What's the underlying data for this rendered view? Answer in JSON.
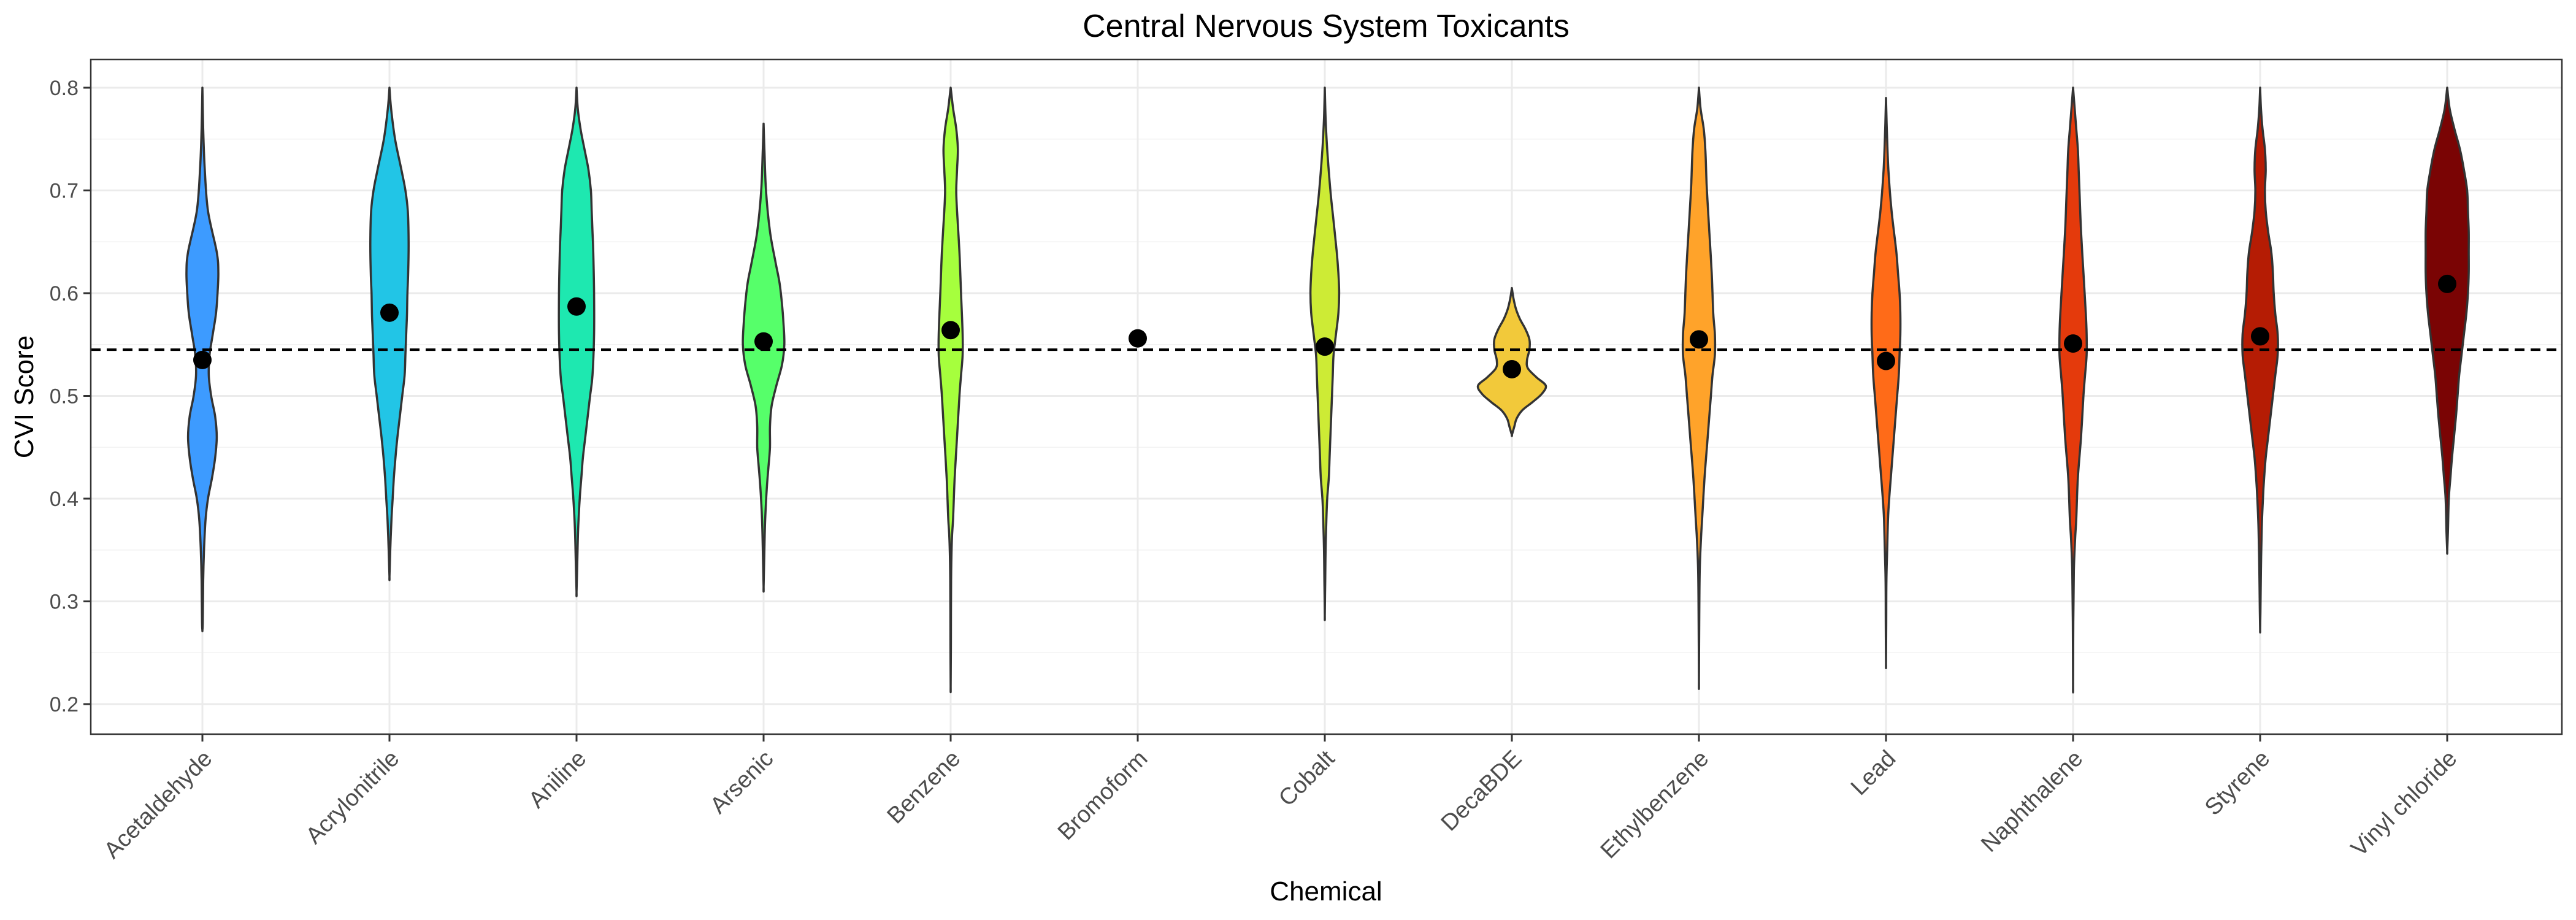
{
  "chart_data": {
    "type": "violin",
    "title": "Central Nervous System Toxicants",
    "xlabel": "Chemical",
    "ylabel": "CVI Score",
    "ylim": [
      0.17,
      0.82
    ],
    "yticks": [
      0.2,
      0.3,
      0.4,
      0.5,
      0.6,
      0.7,
      0.8
    ],
    "ytick_labels": [
      "0.2",
      "0.3",
      "0.4",
      "0.5",
      "0.6",
      "0.7",
      "0.8"
    ],
    "grid": true,
    "legend": "none",
    "reference_line": {
      "y": 0.545,
      "style": "dashed",
      "color": "#000000"
    },
    "categories": [
      "Acetaldehyde",
      "Acrylonitrile",
      "Aniline",
      "Arsenic",
      "Benzene",
      "Bromoform",
      "Cobalt",
      "DecaBDE",
      "Ethylbenzene",
      "Lead",
      "Naphthalene",
      "Styrene",
      "Vinyl chloride"
    ],
    "series": [
      {
        "name": "Acetaldehyde",
        "color": "#3d9bff",
        "mean": 0.535,
        "density": [
          [
            0.8,
            0.0
          ],
          [
            0.76,
            0.02
          ],
          [
            0.72,
            0.06
          ],
          [
            0.68,
            0.14
          ],
          [
            0.64,
            0.36
          ],
          [
            0.62,
            0.4
          ],
          [
            0.6,
            0.38
          ],
          [
            0.58,
            0.34
          ],
          [
            0.56,
            0.26
          ],
          [
            0.54,
            0.18
          ],
          [
            0.52,
            0.16
          ],
          [
            0.5,
            0.22
          ],
          [
            0.48,
            0.32
          ],
          [
            0.46,
            0.36
          ],
          [
            0.44,
            0.32
          ],
          [
            0.42,
            0.24
          ],
          [
            0.4,
            0.14
          ],
          [
            0.38,
            0.08
          ],
          [
            0.35,
            0.04
          ],
          [
            0.32,
            0.02
          ],
          [
            0.28,
            0.01
          ],
          [
            0.272,
            0.0
          ]
        ]
      },
      {
        "name": "Acrylonitrile",
        "color": "#22c5e6",
        "mean": 0.581,
        "density": [
          [
            0.8,
            0.0
          ],
          [
            0.78,
            0.04
          ],
          [
            0.75,
            0.14
          ],
          [
            0.72,
            0.3
          ],
          [
            0.7,
            0.4
          ],
          [
            0.68,
            0.46
          ],
          [
            0.65,
            0.48
          ],
          [
            0.62,
            0.47
          ],
          [
            0.6,
            0.45
          ],
          [
            0.58,
            0.44
          ],
          [
            0.56,
            0.42
          ],
          [
            0.54,
            0.4
          ],
          [
            0.52,
            0.38
          ],
          [
            0.5,
            0.32
          ],
          [
            0.48,
            0.26
          ],
          [
            0.46,
            0.2
          ],
          [
            0.44,
            0.15
          ],
          [
            0.42,
            0.11
          ],
          [
            0.4,
            0.08
          ],
          [
            0.38,
            0.05
          ],
          [
            0.35,
            0.02
          ],
          [
            0.324,
            0.0
          ]
        ]
      },
      {
        "name": "Aniline",
        "color": "#1ee8b0",
        "mean": 0.587,
        "density": [
          [
            0.8,
            0.0
          ],
          [
            0.78,
            0.03
          ],
          [
            0.76,
            0.1
          ],
          [
            0.74,
            0.2
          ],
          [
            0.72,
            0.3
          ],
          [
            0.7,
            0.36
          ],
          [
            0.68,
            0.38
          ],
          [
            0.66,
            0.4
          ],
          [
            0.64,
            0.42
          ],
          [
            0.6,
            0.44
          ],
          [
            0.56,
            0.44
          ],
          [
            0.52,
            0.4
          ],
          [
            0.5,
            0.34
          ],
          [
            0.48,
            0.28
          ],
          [
            0.46,
            0.22
          ],
          [
            0.44,
            0.16
          ],
          [
            0.42,
            0.12
          ],
          [
            0.4,
            0.08
          ],
          [
            0.37,
            0.04
          ],
          [
            0.34,
            0.02
          ],
          [
            0.309,
            0.0
          ]
        ]
      },
      {
        "name": "Arsenic",
        "color": "#56ff6a",
        "mean": 0.553,
        "density": [
          [
            0.765,
            0.0
          ],
          [
            0.74,
            0.02
          ],
          [
            0.7,
            0.06
          ],
          [
            0.66,
            0.16
          ],
          [
            0.63,
            0.3
          ],
          [
            0.61,
            0.4
          ],
          [
            0.59,
            0.46
          ],
          [
            0.57,
            0.5
          ],
          [
            0.55,
            0.52
          ],
          [
            0.53,
            0.46
          ],
          [
            0.51,
            0.32
          ],
          [
            0.49,
            0.2
          ],
          [
            0.47,
            0.16
          ],
          [
            0.45,
            0.16
          ],
          [
            0.43,
            0.12
          ],
          [
            0.41,
            0.08
          ],
          [
            0.38,
            0.04
          ],
          [
            0.35,
            0.02
          ],
          [
            0.314,
            0.0
          ]
        ]
      },
      {
        "name": "Benzene",
        "color": "#a6ff3d",
        "mean": 0.564,
        "density": [
          [
            0.8,
            0.0
          ],
          [
            0.78,
            0.06
          ],
          [
            0.76,
            0.14
          ],
          [
            0.74,
            0.18
          ],
          [
            0.72,
            0.16
          ],
          [
            0.7,
            0.14
          ],
          [
            0.68,
            0.16
          ],
          [
            0.64,
            0.22
          ],
          [
            0.6,
            0.26
          ],
          [
            0.56,
            0.3
          ],
          [
            0.54,
            0.3
          ],
          [
            0.52,
            0.26
          ],
          [
            0.5,
            0.22
          ],
          [
            0.46,
            0.16
          ],
          [
            0.42,
            0.1
          ],
          [
            0.38,
            0.06
          ],
          [
            0.36,
            0.03
          ],
          [
            0.32,
            0.01
          ],
          [
            0.26,
            0.006
          ],
          [
            0.217,
            0.0
          ]
        ]
      },
      {
        "name": "Bromoform",
        "color": "#d6f53b",
        "mean": 0.556,
        "density": []
      },
      {
        "name": "Cobalt",
        "color": "#cdeb35",
        "mean": 0.548,
        "density": [
          [
            0.8,
            0.0
          ],
          [
            0.77,
            0.02
          ],
          [
            0.74,
            0.06
          ],
          [
            0.7,
            0.14
          ],
          [
            0.67,
            0.22
          ],
          [
            0.64,
            0.3
          ],
          [
            0.62,
            0.34
          ],
          [
            0.6,
            0.36
          ],
          [
            0.58,
            0.34
          ],
          [
            0.56,
            0.28
          ],
          [
            0.54,
            0.22
          ],
          [
            0.52,
            0.2
          ],
          [
            0.5,
            0.18
          ],
          [
            0.48,
            0.16
          ],
          [
            0.46,
            0.14
          ],
          [
            0.44,
            0.12
          ],
          [
            0.42,
            0.1
          ],
          [
            0.4,
            0.06
          ],
          [
            0.38,
            0.04
          ],
          [
            0.35,
            0.02
          ],
          [
            0.32,
            0.01
          ],
          [
            0.286,
            0.0
          ]
        ]
      },
      {
        "name": "DecaBDE",
        "color": "#f2c93a",
        "mean": 0.526,
        "density": [
          [
            0.605,
            0.0
          ],
          [
            0.595,
            0.04
          ],
          [
            0.585,
            0.1
          ],
          [
            0.575,
            0.2
          ],
          [
            0.565,
            0.34
          ],
          [
            0.555,
            0.44
          ],
          [
            0.545,
            0.44
          ],
          [
            0.535,
            0.38
          ],
          [
            0.527,
            0.4
          ],
          [
            0.518,
            0.62
          ],
          [
            0.51,
            0.85
          ],
          [
            0.502,
            0.75
          ],
          [
            0.494,
            0.52
          ],
          [
            0.486,
            0.26
          ],
          [
            0.478,
            0.12
          ],
          [
            0.47,
            0.06
          ],
          [
            0.462,
            0.0
          ]
        ]
      },
      {
        "name": "Ethylbenzene",
        "color": "#ffa32a",
        "mean": 0.555,
        "density": [
          [
            0.8,
            0.0
          ],
          [
            0.78,
            0.04
          ],
          [
            0.76,
            0.12
          ],
          [
            0.74,
            0.16
          ],
          [
            0.72,
            0.18
          ],
          [
            0.7,
            0.2
          ],
          [
            0.66,
            0.26
          ],
          [
            0.62,
            0.32
          ],
          [
            0.58,
            0.36
          ],
          [
            0.56,
            0.4
          ],
          [
            0.54,
            0.4
          ],
          [
            0.52,
            0.34
          ],
          [
            0.5,
            0.3
          ],
          [
            0.46,
            0.22
          ],
          [
            0.42,
            0.14
          ],
          [
            0.38,
            0.08
          ],
          [
            0.36,
            0.05
          ],
          [
            0.33,
            0.02
          ],
          [
            0.28,
            0.008
          ],
          [
            0.222,
            0.0
          ]
        ]
      },
      {
        "name": "Lead",
        "color": "#ff6b18",
        "mean": 0.534,
        "density": [
          [
            0.79,
            0.0
          ],
          [
            0.76,
            0.02
          ],
          [
            0.72,
            0.06
          ],
          [
            0.68,
            0.14
          ],
          [
            0.64,
            0.26
          ],
          [
            0.62,
            0.3
          ],
          [
            0.6,
            0.34
          ],
          [
            0.58,
            0.36
          ],
          [
            0.56,
            0.36
          ],
          [
            0.54,
            0.34
          ],
          [
            0.52,
            0.32
          ],
          [
            0.5,
            0.28
          ],
          [
            0.48,
            0.24
          ],
          [
            0.46,
            0.2
          ],
          [
            0.44,
            0.16
          ],
          [
            0.42,
            0.12
          ],
          [
            0.4,
            0.08
          ],
          [
            0.38,
            0.05
          ],
          [
            0.35,
            0.03
          ],
          [
            0.32,
            0.01
          ],
          [
            0.28,
            0.006
          ],
          [
            0.24,
            0.0
          ]
        ]
      },
      {
        "name": "Naphthalene",
        "color": "#e43a0c",
        "mean": 0.551,
        "density": [
          [
            0.8,
            0.0
          ],
          [
            0.78,
            0.04
          ],
          [
            0.76,
            0.08
          ],
          [
            0.74,
            0.12
          ],
          [
            0.72,
            0.14
          ],
          [
            0.7,
            0.16
          ],
          [
            0.66,
            0.2
          ],
          [
            0.62,
            0.26
          ],
          [
            0.58,
            0.32
          ],
          [
            0.56,
            0.34
          ],
          [
            0.54,
            0.34
          ],
          [
            0.52,
            0.3
          ],
          [
            0.5,
            0.26
          ],
          [
            0.46,
            0.2
          ],
          [
            0.42,
            0.12
          ],
          [
            0.38,
            0.08
          ],
          [
            0.36,
            0.05
          ],
          [
            0.33,
            0.02
          ],
          [
            0.28,
            0.006
          ],
          [
            0.219,
            0.0
          ]
        ]
      },
      {
        "name": "Styrene",
        "color": "#b51c04",
        "mean": 0.558,
        "density": [
          [
            0.8,
            0.0
          ],
          [
            0.78,
            0.02
          ],
          [
            0.76,
            0.06
          ],
          [
            0.74,
            0.12
          ],
          [
            0.72,
            0.14
          ],
          [
            0.7,
            0.12
          ],
          [
            0.68,
            0.14
          ],
          [
            0.66,
            0.2
          ],
          [
            0.64,
            0.28
          ],
          [
            0.62,
            0.32
          ],
          [
            0.6,
            0.34
          ],
          [
            0.58,
            0.38
          ],
          [
            0.56,
            0.44
          ],
          [
            0.54,
            0.44
          ],
          [
            0.52,
            0.38
          ],
          [
            0.5,
            0.32
          ],
          [
            0.48,
            0.26
          ],
          [
            0.46,
            0.2
          ],
          [
            0.44,
            0.14
          ],
          [
            0.42,
            0.1
          ],
          [
            0.4,
            0.07
          ],
          [
            0.37,
            0.04
          ],
          [
            0.33,
            0.02
          ],
          [
            0.29,
            0.008
          ],
          [
            0.272,
            0.0
          ]
        ]
      },
      {
        "name": "Vinyl chloride",
        "color": "#7a0404",
        "mean": 0.609,
        "density": [
          [
            0.8,
            0.0
          ],
          [
            0.78,
            0.06
          ],
          [
            0.76,
            0.18
          ],
          [
            0.74,
            0.32
          ],
          [
            0.72,
            0.42
          ],
          [
            0.7,
            0.5
          ],
          [
            0.68,
            0.52
          ],
          [
            0.66,
            0.54
          ],
          [
            0.64,
            0.54
          ],
          [
            0.62,
            0.54
          ],
          [
            0.6,
            0.52
          ],
          [
            0.58,
            0.48
          ],
          [
            0.56,
            0.42
          ],
          [
            0.54,
            0.36
          ],
          [
            0.52,
            0.3
          ],
          [
            0.5,
            0.26
          ],
          [
            0.48,
            0.22
          ],
          [
            0.46,
            0.17
          ],
          [
            0.44,
            0.12
          ],
          [
            0.42,
            0.08
          ],
          [
            0.4,
            0.04
          ],
          [
            0.37,
            0.02
          ],
          [
            0.349,
            0.0
          ]
        ]
      }
    ]
  }
}
